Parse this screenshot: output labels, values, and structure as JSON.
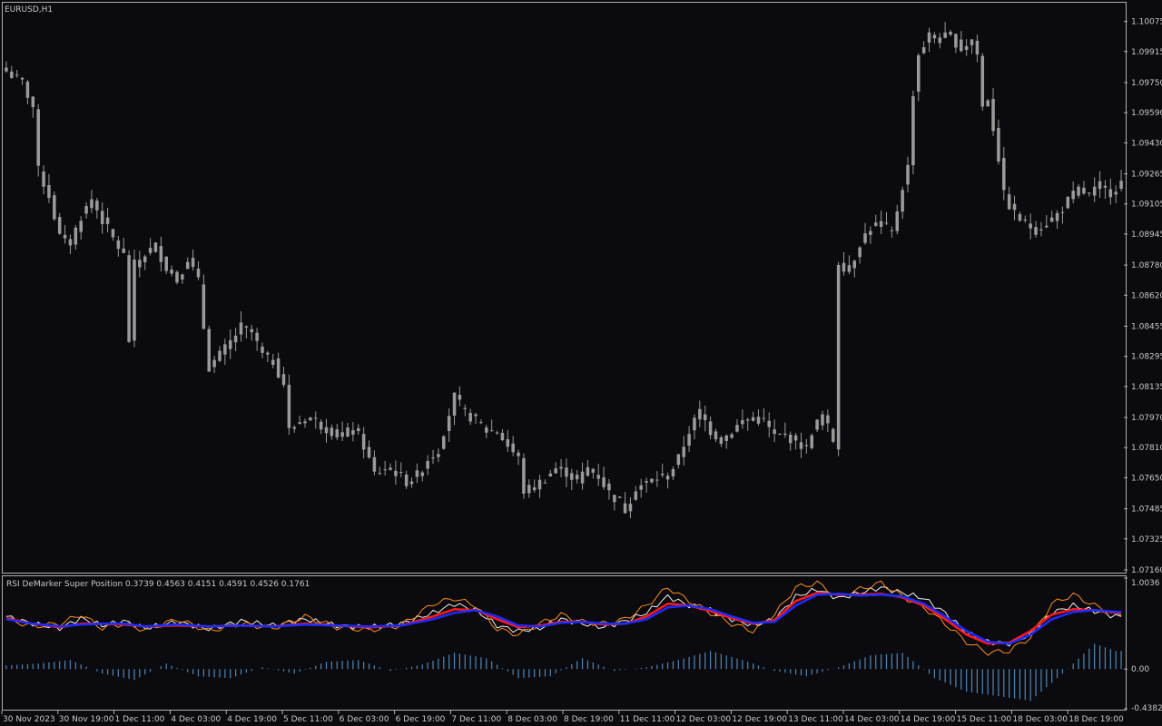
{
  "main_panel": {
    "title": "EURUSD,H1",
    "price_ticks": [
      "1.10075",
      "1.09915",
      "1.09750",
      "1.09590",
      "1.09430",
      "1.09265",
      "1.09105",
      "1.08945",
      "1.08780",
      "1.08620",
      "1.08455",
      "1.08295",
      "1.08135",
      "1.07970",
      "1.07810",
      "1.07650",
      "1.07485",
      "1.07325",
      "1.07160"
    ]
  },
  "indicator_panel": {
    "title": "RSI DeMarker Super Position 0.3739 0.4563 0.4151 0.4591 0.4526 0.1761",
    "ticks": [
      "1.0036",
      "0.00",
      "-0.4382"
    ]
  },
  "time_axis": [
    "30 Nov 2023",
    "30 Nov 19:00",
    "1 Dec 11:00",
    "4 Dec 03:00",
    "4 Dec 19:00",
    "5 Dec 11:00",
    "6 Dec 03:00",
    "6 Dec 19:00",
    "7 Dec 11:00",
    "8 Dec 03:00",
    "8 Dec 19:00",
    "11 Dec 11:00",
    "12 Dec 03:00",
    "12 Dec 19:00",
    "13 Dec 11:00",
    "14 Dec 03:00",
    "14 Dec 19:00",
    "15 Dec 11:00",
    "18 Dec 03:00",
    "18 Dec 19:00"
  ],
  "colors": {
    "background": "#0b0b0f",
    "candles": "#9a9a9a",
    "frame": "#b0b0b0",
    "text": "#c8c8c8",
    "white_line": "#f0f0f0",
    "orange_line": "#ff8c1a",
    "red_line": "#ff1a1a",
    "blue_line": "#1f2cff",
    "histogram": "#4f86b8"
  },
  "chart_data": [
    {
      "type": "candlestick",
      "title": "EURUSD,H1",
      "ylim": [
        1.0716,
        1.1016
      ],
      "close_path": [
        [
          0,
          1.0981
        ],
        [
          3,
          1.0975
        ],
        [
          5,
          1.0962
        ],
        [
          6,
          1.0928
        ],
        [
          8,
          1.0915
        ],
        [
          10,
          1.0893
        ],
        [
          12,
          1.089
        ],
        [
          14,
          1.0904
        ],
        [
          16,
          1.0913
        ],
        [
          18,
          1.0902
        ],
        [
          20,
          1.0892
        ],
        [
          22,
          1.0883
        ],
        [
          23,
          1.0838
        ],
        [
          24,
          1.0878
        ],
        [
          26,
          1.0884
        ],
        [
          28,
          1.0888
        ],
        [
          30,
          1.0877
        ],
        [
          32,
          1.087
        ],
        [
          34,
          1.0882
        ],
        [
          36,
          1.0869
        ],
        [
          37,
          1.0845
        ],
        [
          38,
          1.0824
        ],
        [
          40,
          1.083
        ],
        [
          42,
          1.0837
        ],
        [
          44,
          1.0845
        ],
        [
          46,
          1.0842
        ],
        [
          48,
          1.083
        ],
        [
          50,
          1.0827
        ],
        [
          52,
          1.0815
        ],
        [
          53,
          1.079
        ],
        [
          55,
          1.0795
        ],
        [
          57,
          1.0797
        ],
        [
          59,
          1.0793
        ],
        [
          61,
          1.079
        ],
        [
          63,
          1.0786
        ],
        [
          65,
          1.0792
        ],
        [
          67,
          1.0782
        ],
        [
          69,
          1.0767
        ],
        [
          71,
          1.077
        ],
        [
          73,
          1.0768
        ],
        [
          75,
          1.0763
        ],
        [
          77,
          1.0766
        ],
        [
          79,
          1.0775
        ],
        [
          81,
          1.078
        ],
        [
          82,
          1.079
        ],
        [
          84,
          1.0808
        ],
        [
          86,
          1.0799
        ],
        [
          88,
          1.0796
        ],
        [
          90,
          1.079
        ],
        [
          92,
          1.079
        ],
        [
          94,
          1.0782
        ],
        [
          96,
          1.0775
        ],
        [
          97,
          1.0758
        ],
        [
          99,
          1.076
        ],
        [
          101,
          1.0765
        ],
        [
          103,
          1.077
        ],
        [
          105,
          1.0768
        ],
        [
          107,
          1.0763
        ],
        [
          109,
          1.077
        ],
        [
          111,
          1.0766
        ],
        [
          113,
          1.0757
        ],
        [
          115,
          1.0752
        ],
        [
          116,
          1.0748
        ],
        [
          118,
          1.076
        ],
        [
          120,
          1.0762
        ],
        [
          122,
          1.0765
        ],
        [
          124,
          1.0766
        ],
        [
          126,
          1.0775
        ],
        [
          128,
          1.079
        ],
        [
          130,
          1.08
        ],
        [
          132,
          1.079
        ],
        [
          134,
          1.0785
        ],
        [
          136,
          1.079
        ],
        [
          138,
          1.0795
        ],
        [
          140,
          1.0797
        ],
        [
          142,
          1.0795
        ],
        [
          144,
          1.0787
        ],
        [
          146,
          1.0787
        ],
        [
          148,
          1.0785
        ],
        [
          150,
          1.078
        ],
        [
          151,
          1.079
        ],
        [
          153,
          1.0798
        ],
        [
          155,
          1.0785
        ],
        [
          156,
          1.088
        ],
        [
          158,
          1.0875
        ],
        [
          160,
          1.089
        ],
        [
          162,
          1.0898
        ],
        [
          164,
          1.09
        ],
        [
          166,
          1.0895
        ],
        [
          168,
          1.092
        ],
        [
          169,
          1.093
        ],
        [
          170,
          1.097
        ],
        [
          171,
          1.099
        ],
        [
          173,
          1.1
        ],
        [
          175,
          1.0998
        ],
        [
          177,
          1.1
        ],
        [
          179,
          1.0993
        ],
        [
          181,
          1.0998
        ],
        [
          182,
          1.099
        ],
        [
          183,
          1.0962
        ],
        [
          184,
          1.0967
        ],
        [
          186,
          1.0935
        ],
        [
          187,
          1.0915
        ],
        [
          189,
          1.0905
        ],
        [
          191,
          1.09
        ],
        [
          193,
          1.0897
        ],
        [
          195,
          1.09
        ],
        [
          197,
          1.0905
        ],
        [
          199,
          1.0912
        ],
        [
          201,
          1.0918
        ],
        [
          203,
          1.0915
        ],
        [
          205,
          1.092
        ],
        [
          207,
          1.0917
        ],
        [
          209,
          1.0922
        ]
      ],
      "spike_bar": {
        "index": 156,
        "open": 1.078,
        "close": 1.088
      }
    },
    {
      "type": "line",
      "title": "RSI DeMarker Super Position 0.3739 0.4563 0.4151 0.4591 0.4526 0.1761",
      "ylim": [
        -0.4382,
        1.0036
      ],
      "x": [
        0,
        5,
        10,
        14,
        18,
        22,
        26,
        32,
        38,
        44,
        50,
        56,
        62,
        68,
        74,
        80,
        84,
        88,
        92,
        96,
        100,
        104,
        108,
        112,
        116,
        120,
        124,
        128,
        132,
        136,
        140,
        144,
        148,
        152,
        156,
        160,
        164,
        168,
        172,
        176,
        180,
        184,
        188,
        192,
        196,
        200,
        204,
        208
      ],
      "series": [
        {
          "color": "#f0f0f0",
          "values": [
            0.58,
            0.5,
            0.45,
            0.56,
            0.48,
            0.53,
            0.45,
            0.52,
            0.44,
            0.53,
            0.48,
            0.55,
            0.48,
            0.46,
            0.5,
            0.62,
            0.72,
            0.65,
            0.48,
            0.42,
            0.45,
            0.55,
            0.5,
            0.46,
            0.53,
            0.62,
            0.8,
            0.7,
            0.65,
            0.55,
            0.48,
            0.55,
            0.8,
            0.88,
            0.78,
            0.84,
            0.9,
            0.84,
            0.78,
            0.62,
            0.4,
            0.3,
            0.28,
            0.38,
            0.62,
            0.7,
            0.64,
            0.58
          ]
        },
        {
          "color": "#ff8c1a",
          "values": [
            0.55,
            0.47,
            0.5,
            0.6,
            0.45,
            0.5,
            0.43,
            0.55,
            0.42,
            0.5,
            0.45,
            0.58,
            0.46,
            0.43,
            0.48,
            0.72,
            0.78,
            0.7,
            0.44,
            0.38,
            0.5,
            0.6,
            0.52,
            0.5,
            0.55,
            0.7,
            0.9,
            0.75,
            0.62,
            0.5,
            0.42,
            0.6,
            0.9,
            0.95,
            0.8,
            0.88,
            0.95,
            0.8,
            0.68,
            0.5,
            0.3,
            0.18,
            0.2,
            0.35,
            0.72,
            0.82,
            0.7,
            0.6
          ]
        },
        {
          "color": "#ff1a1a",
          "values": [
            0.56,
            0.5,
            0.46,
            0.5,
            0.5,
            0.49,
            0.47,
            0.48,
            0.47,
            0.48,
            0.47,
            0.5,
            0.48,
            0.46,
            0.48,
            0.58,
            0.66,
            0.65,
            0.55,
            0.46,
            0.48,
            0.52,
            0.52,
            0.49,
            0.5,
            0.58,
            0.72,
            0.7,
            0.64,
            0.56,
            0.5,
            0.54,
            0.75,
            0.84,
            0.82,
            0.82,
            0.83,
            0.79,
            0.7,
            0.55,
            0.38,
            0.28,
            0.29,
            0.42,
            0.6,
            0.66,
            0.65,
            0.62
          ]
        },
        {
          "color": "#1f2cff",
          "values": [
            0.55,
            0.5,
            0.47,
            0.49,
            0.5,
            0.5,
            0.47,
            0.49,
            0.47,
            0.48,
            0.47,
            0.49,
            0.48,
            0.47,
            0.48,
            0.55,
            0.62,
            0.65,
            0.58,
            0.48,
            0.47,
            0.51,
            0.52,
            0.5,
            0.5,
            0.55,
            0.68,
            0.7,
            0.66,
            0.58,
            0.51,
            0.52,
            0.7,
            0.82,
            0.83,
            0.81,
            0.82,
            0.8,
            0.72,
            0.58,
            0.42,
            0.3,
            0.28,
            0.38,
            0.55,
            0.63,
            0.65,
            0.63
          ]
        }
      ],
      "histogram": {
        "x": [
          0,
          6,
          12,
          18,
          24,
          30,
          36,
          42,
          48,
          54,
          60,
          66,
          72,
          78,
          84,
          90,
          96,
          102,
          108,
          114,
          120,
          126,
          132,
          138,
          144,
          150,
          156,
          162,
          168,
          174,
          180,
          186,
          192,
          198,
          204,
          208
        ],
        "values": [
          0.04,
          0.06,
          0.1,
          -0.05,
          -0.12,
          0.06,
          -0.08,
          -0.1,
          0.02,
          -0.05,
          0.08,
          0.1,
          -0.02,
          0.05,
          0.18,
          0.12,
          -0.1,
          -0.08,
          0.12,
          -0.02,
          0.02,
          0.1,
          0.2,
          0.1,
          -0.02,
          -0.08,
          0.02,
          0.15,
          0.18,
          -0.1,
          -0.25,
          -0.3,
          -0.35,
          -0.05,
          0.28,
          0.2
        ]
      }
    }
  ]
}
